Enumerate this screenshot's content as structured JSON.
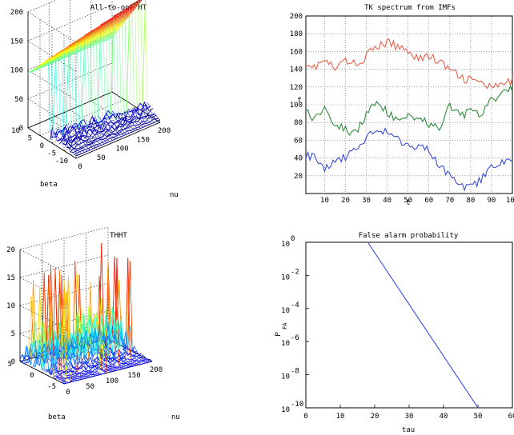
{
  "chart_data": [
    {
      "type": "surface",
      "title": "All-to-one HT",
      "xlabel": "nu",
      "ylabel": "beta",
      "zlabel": "",
      "xlim": [
        0,
        200
      ],
      "ylim": [
        -10,
        10
      ],
      "zlim": [
        0,
        200
      ],
      "xticks": [
        "0",
        "50",
        "100",
        "150",
        "200"
      ],
      "yticks": [
        "-10",
        "-5",
        "0",
        "5",
        "10"
      ],
      "zticks": [
        "0",
        "50",
        "100",
        "150",
        "200"
      ],
      "ridge": [
        {
          "nu": 0,
          "beta": -10,
          "value": 60
        },
        {
          "nu": 200,
          "beta": 10,
          "value": 190
        }
      ]
    },
    {
      "type": "line",
      "title": "TK spectrum from IMFs",
      "xlabel": "t",
      "ylabel": "f",
      "xlim": [
        1,
        100
      ],
      "ylim": [
        0,
        200
      ],
      "xticks": [
        "10",
        "20",
        "30",
        "40",
        "50",
        "60",
        "70",
        "80",
        "90",
        "100"
      ],
      "yticks": [
        "20",
        "40",
        "60",
        "80",
        "100",
        "120",
        "140",
        "160",
        "180",
        "200"
      ],
      "grid": true,
      "series": [
        {
          "color": "#e8604a",
          "x": [
            1,
            5,
            10,
            15,
            20,
            25,
            30,
            35,
            40,
            45,
            50,
            55,
            60,
            65,
            70,
            75,
            80,
            85,
            90,
            95,
            100
          ],
          "values": [
            148,
            142,
            150,
            140,
            150,
            145,
            155,
            165,
            170,
            165,
            162,
            152,
            155,
            148,
            140,
            130,
            128,
            125,
            118,
            122,
            126
          ]
        },
        {
          "color": "#2e8b3a",
          "x": [
            1,
            5,
            10,
            15,
            20,
            25,
            30,
            35,
            40,
            45,
            50,
            55,
            60,
            65,
            70,
            75,
            80,
            85,
            90,
            95,
            100
          ],
          "values": [
            98,
            82,
            100,
            78,
            72,
            68,
            90,
            100,
            92,
            80,
            90,
            85,
            78,
            72,
            100,
            88,
            92,
            88,
            105,
            112,
            120
          ]
        },
        {
          "color": "#3a4ed8",
          "x": [
            1,
            5,
            10,
            15,
            20,
            25,
            30,
            35,
            40,
            45,
            50,
            55,
            60,
            65,
            70,
            75,
            80,
            85,
            90,
            95,
            100
          ],
          "values": [
            45,
            40,
            28,
            38,
            42,
            52,
            62,
            72,
            70,
            60,
            52,
            55,
            50,
            32,
            18,
            10,
            6,
            15,
            28,
            35,
            40
          ]
        }
      ]
    },
    {
      "type": "surface",
      "title": "THHT",
      "xlabel": "nu",
      "ylabel": "beta",
      "zlabel": "",
      "xlim": [
        0,
        200
      ],
      "ylim": [
        -5,
        5
      ],
      "zlim": [
        0,
        20
      ],
      "xticks": [
        "0",
        "50",
        "100",
        "150",
        "200"
      ],
      "yticks": [
        "-5",
        "0",
        "5"
      ],
      "zticks": [
        "0",
        "5",
        "10",
        "15",
        "20"
      ]
    },
    {
      "type": "line",
      "title": "False alarm probability",
      "xlabel": "tau",
      "ylabel": "P",
      "ylabel_sub": "FA",
      "yscale": "log",
      "xlim": [
        0,
        60
      ],
      "ylim": [
        1e-10,
        1
      ],
      "xticks": [
        "0",
        "10",
        "20",
        "30",
        "40",
        "50",
        "60"
      ],
      "yticks": [
        {
          "base": "10",
          "exp": "0"
        },
        {
          "base": "10",
          "exp": "-2"
        },
        {
          "base": "10",
          "exp": "-4"
        },
        {
          "base": "10",
          "exp": "-6"
        },
        {
          "base": "10",
          "exp": "-8"
        },
        {
          "base": "10",
          "exp": "-10"
        }
      ],
      "series": [
        {
          "color": "#3a4ed8",
          "x": [
            18,
            50
          ],
          "values": [
            1,
            1e-10
          ]
        }
      ]
    }
  ]
}
